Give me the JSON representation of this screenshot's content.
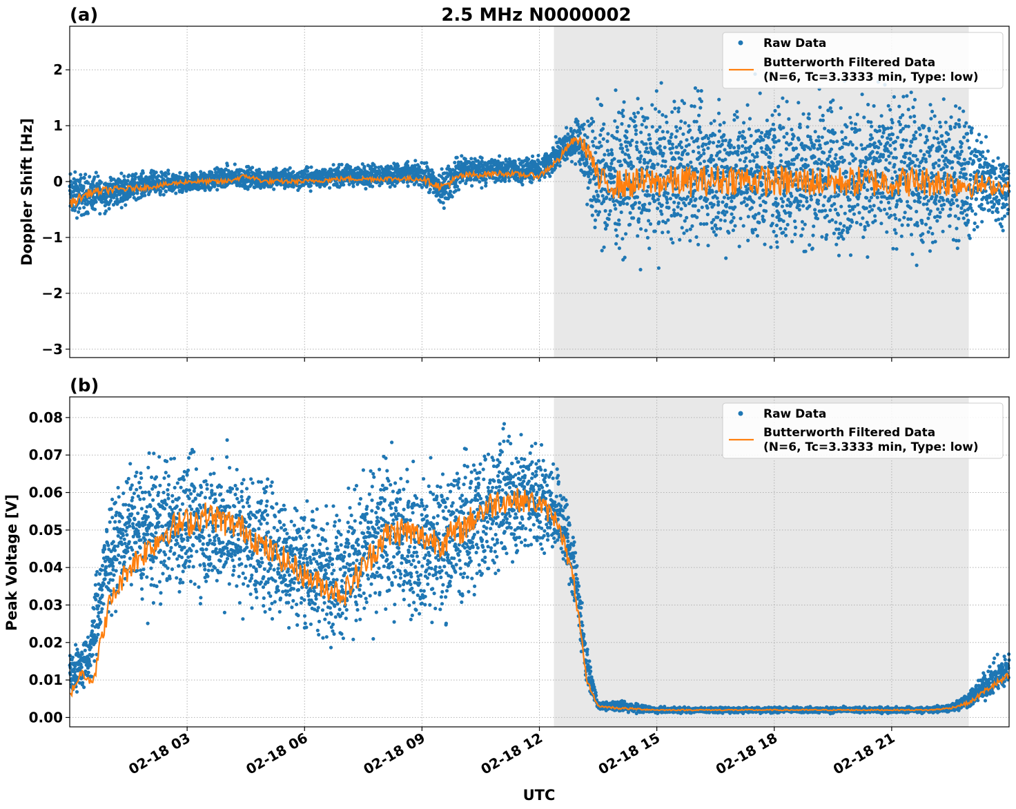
{
  "figure": {
    "title": "2.5 MHz N0000002",
    "xlabel": "UTC",
    "colors": {
      "raw": "#1f77b4",
      "filtered": "#ff7f0e",
      "shade": "#e8e8e8",
      "grid": "#b0b0b0"
    }
  },
  "chart_data": [
    {
      "type": "scatter",
      "panel_label": "(a)",
      "ylabel": "Doppler Shift [Hz]",
      "x_unit": "hours UTC on 02-18",
      "xlim": [
        0.0,
        24.0
      ],
      "ylim": [
        -3.15,
        2.78
      ],
      "yticks": [
        2,
        1,
        0,
        -1,
        -2,
        -3
      ],
      "ytick_labels": [
        "2",
        "1",
        "0",
        "−1",
        "−2",
        "−3"
      ],
      "grid": true,
      "legend_position": "top-right",
      "shaded_region_x": [
        12.37,
        22.97
      ],
      "series": [
        {
          "name": "Raw Data",
          "style": "scatter",
          "x": [
            0.0,
            1.0,
            2.0,
            3.0,
            4.0,
            5.0,
            6.0,
            7.0,
            8.0,
            9.0,
            9.5,
            10.0,
            11.0,
            12.0,
            12.5,
            13.0,
            13.4,
            14.0,
            15.0,
            16.0,
            17.0,
            18.0,
            19.0,
            20.0,
            21.0,
            22.0,
            23.0,
            24.0
          ],
          "lower": [
            -0.8,
            -0.6,
            -0.3,
            -0.3,
            -0.2,
            -0.2,
            -0.2,
            -0.15,
            -0.15,
            -0.15,
            -0.6,
            -0.2,
            -0.1,
            -0.1,
            0.1,
            0.3,
            -1.4,
            -1.6,
            -1.6,
            -1.6,
            -1.6,
            -1.6,
            -1.6,
            -1.6,
            -1.6,
            -1.6,
            -1.4,
            -0.8
          ],
          "upper": [
            0.3,
            0.2,
            0.25,
            0.2,
            0.35,
            0.3,
            0.3,
            0.35,
            0.4,
            0.4,
            0.3,
            0.6,
            0.5,
            0.5,
            0.9,
            1.3,
            1.6,
            1.8,
            1.9,
            1.9,
            1.9,
            1.9,
            1.9,
            1.9,
            1.9,
            1.8,
            1.6,
            0.5
          ]
        },
        {
          "name": "Butterworth Filtered Data\n(N=6, Tc=3.3333 min, Type: low)",
          "style": "line",
          "x": [
            0.0,
            0.5,
            1.0,
            2.0,
            3.0,
            4.0,
            4.5,
            5.0,
            6.0,
            7.0,
            8.0,
            9.0,
            9.5,
            10.0,
            11.0,
            12.0,
            12.5,
            12.8,
            13.0,
            13.3,
            13.5,
            14.0,
            15.0,
            16.0,
            17.0,
            18.0,
            19.0,
            20.0,
            21.0,
            22.0,
            23.0,
            24.0
          ],
          "y": [
            -0.4,
            -0.2,
            -0.15,
            -0.1,
            0.0,
            0.0,
            0.1,
            0.0,
            0.0,
            0.05,
            0.05,
            0.05,
            -0.1,
            0.1,
            0.15,
            0.1,
            0.4,
            0.7,
            0.75,
            0.5,
            0.0,
            -0.05,
            0.0,
            0.0,
            0.05,
            0.0,
            0.0,
            0.0,
            0.0,
            0.0,
            -0.05,
            -0.1
          ]
        }
      ]
    },
    {
      "type": "scatter",
      "panel_label": "(b)",
      "ylabel": "Peak Voltage [V]",
      "x_unit": "hours UTC on 02-18",
      "xlim": [
        0.0,
        24.0
      ],
      "ylim": [
        -0.0025,
        0.0855
      ],
      "yticks": [
        0.08,
        0.07,
        0.06,
        0.05,
        0.04,
        0.03,
        0.02,
        0.01,
        0.0
      ],
      "ytick_labels": [
        "0.08",
        "0.07",
        "0.06",
        "0.05",
        "0.04",
        "0.03",
        "0.02",
        "0.01",
        "0.00"
      ],
      "xtick_values": [
        3,
        6,
        9,
        12,
        15,
        18,
        21
      ],
      "xtick_labels": [
        "02-18 03",
        "02-18 06",
        "02-18 09",
        "02-18 12",
        "02-18 15",
        "02-18 18",
        "02-18 21"
      ],
      "grid": true,
      "legend_position": "top-right",
      "shaded_region_x": [
        12.37,
        22.97
      ],
      "series": [
        {
          "name": "Raw Data",
          "style": "scatter",
          "x": [
            0.0,
            0.5,
            0.7,
            1.0,
            1.5,
            2.0,
            2.5,
            3.0,
            3.5,
            4.0,
            4.5,
            5.0,
            5.5,
            6.0,
            6.5,
            7.0,
            7.5,
            8.0,
            8.5,
            9.0,
            9.5,
            10.0,
            10.5,
            11.0,
            11.5,
            12.0,
            12.5,
            12.9,
            13.2,
            13.5,
            14.0,
            15.0,
            16.0,
            17.0,
            18.0,
            19.0,
            20.0,
            21.0,
            22.0,
            22.5,
            23.0,
            23.5,
            24.0
          ],
          "lower": [
            0.004,
            0.005,
            0.012,
            0.025,
            0.03,
            0.025,
            0.028,
            0.027,
            0.028,
            0.025,
            0.025,
            0.022,
            0.02,
            0.02,
            0.017,
            0.015,
            0.018,
            0.022,
            0.022,
            0.02,
            0.02,
            0.025,
            0.028,
            0.035,
            0.038,
            0.04,
            0.04,
            0.025,
            0.008,
            0.002,
            0.001,
            0.001,
            0.001,
            0.001,
            0.001,
            0.001,
            0.001,
            0.001,
            0.001,
            0.001,
            0.002,
            0.004,
            0.006
          ],
          "upper": [
            0.02,
            0.025,
            0.045,
            0.06,
            0.072,
            0.073,
            0.075,
            0.077,
            0.075,
            0.076,
            0.072,
            0.07,
            0.065,
            0.062,
            0.06,
            0.062,
            0.07,
            0.075,
            0.074,
            0.07,
            0.072,
            0.075,
            0.08,
            0.082,
            0.079,
            0.078,
            0.07,
            0.055,
            0.02,
            0.004,
            0.005,
            0.003,
            0.003,
            0.003,
            0.003,
            0.003,
            0.003,
            0.003,
            0.003,
            0.004,
            0.008,
            0.015,
            0.02
          ]
        },
        {
          "name": "Butterworth Filtered Data\n(N=6, Tc=3.3333 min, Type: low)",
          "style": "line",
          "x": [
            0.0,
            0.3,
            0.6,
            0.8,
            1.0,
            1.5,
            2.0,
            2.5,
            3.0,
            3.5,
            4.0,
            4.5,
            5.0,
            5.5,
            6.0,
            6.5,
            7.0,
            7.5,
            8.0,
            8.5,
            9.0,
            9.5,
            10.0,
            10.5,
            11.0,
            11.5,
            12.0,
            12.5,
            12.9,
            13.2,
            13.5,
            14.0,
            15.0,
            16.0,
            17.0,
            18.0,
            19.0,
            20.0,
            21.0,
            22.0,
            22.5,
            23.0,
            23.5,
            24.0
          ],
          "y": [
            0.006,
            0.012,
            0.01,
            0.02,
            0.03,
            0.04,
            0.045,
            0.05,
            0.052,
            0.054,
            0.052,
            0.05,
            0.045,
            0.042,
            0.038,
            0.035,
            0.033,
            0.04,
            0.048,
            0.05,
            0.048,
            0.047,
            0.05,
            0.055,
            0.058,
            0.058,
            0.057,
            0.052,
            0.035,
            0.01,
            0.003,
            0.0025,
            0.002,
            0.002,
            0.002,
            0.002,
            0.002,
            0.002,
            0.002,
            0.002,
            0.0025,
            0.004,
            0.008,
            0.011
          ]
        }
      ]
    }
  ]
}
